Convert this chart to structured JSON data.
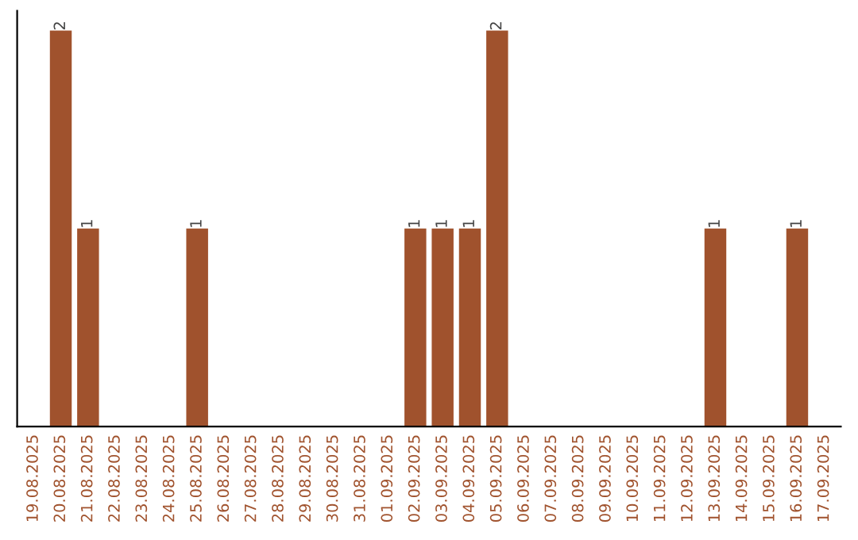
{
  "chart_data": {
    "type": "bar",
    "categories": [
      "19.08.2025",
      "20.08.2025",
      "21.08.2025",
      "22.08.2025",
      "23.08.2025",
      "24.08.2025",
      "25.08.2025",
      "26.08.2025",
      "27.08.2025",
      "28.08.2025",
      "29.08.2025",
      "30.08.2025",
      "31.08.2025",
      "01.09.2025",
      "02.09.2025",
      "03.09.2025",
      "04.09.2025",
      "05.09.2025",
      "06.09.2025",
      "07.09.2025",
      "08.09.2025",
      "09.09.2025",
      "10.09.2025",
      "11.09.2025",
      "12.09.2025",
      "13.09.2025",
      "14.09.2025",
      "15.09.2025",
      "16.09.2025",
      "17.09.2025"
    ],
    "values": [
      0,
      2,
      1,
      0,
      0,
      0,
      1,
      0,
      0,
      0,
      0,
      0,
      0,
      0,
      1,
      1,
      1,
      2,
      0,
      0,
      0,
      0,
      0,
      0,
      0,
      1,
      0,
      0,
      1,
      0
    ],
    "value_labels": [
      null,
      "2",
      "1",
      null,
      null,
      null,
      "1",
      null,
      null,
      null,
      null,
      null,
      null,
      null,
      "1",
      "1",
      "1",
      "2",
      null,
      null,
      null,
      null,
      null,
      null,
      null,
      "1",
      null,
      null,
      "1",
      null
    ],
    "color": "#a0522d",
    "tick_labels": "x",
    "grid": false,
    "legend": false
  }
}
